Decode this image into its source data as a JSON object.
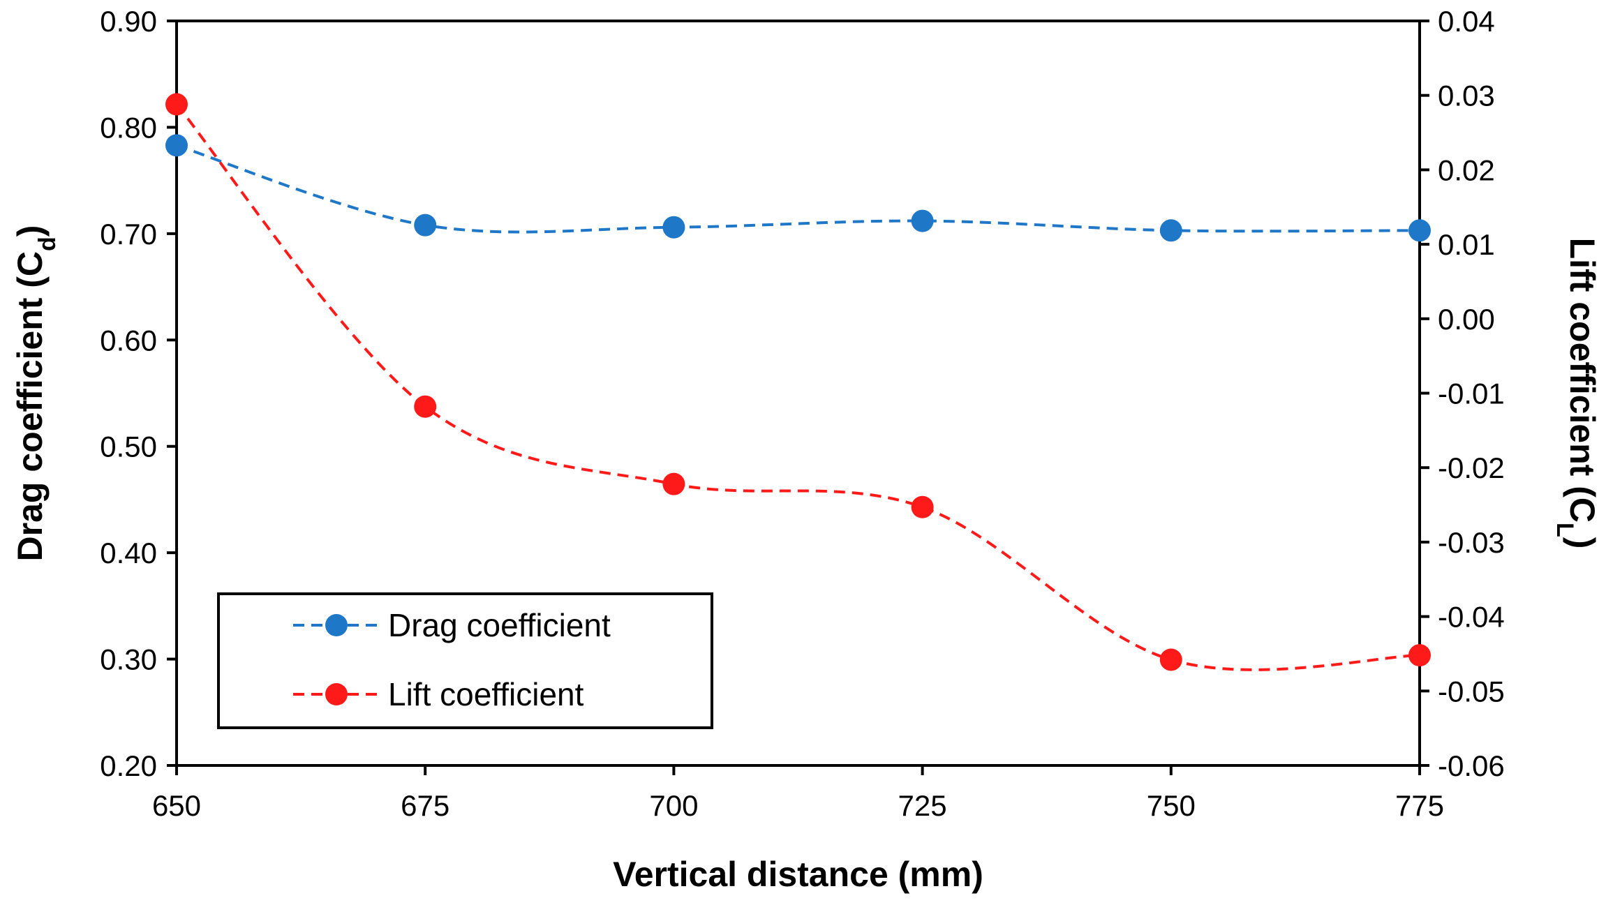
{
  "chart_data": {
    "type": "line",
    "x": [
      650,
      675,
      700,
      725,
      750,
      775
    ],
    "xlabel": "Vertical distance (mm)",
    "xlim": [
      650,
      775
    ],
    "xticks": [
      "650",
      "675",
      "700",
      "725",
      "750",
      "775"
    ],
    "ylabel_left": {
      "main": "Drag coefficient (C",
      "sub": "d",
      "close": ")"
    },
    "ylabel_right": {
      "main": "Lift coefficient (C",
      "sub": "L",
      "close": ")"
    },
    "ylim_left": [
      0.2,
      0.9
    ],
    "ylim_right": [
      -0.06,
      0.04
    ],
    "yticks_left": [
      "0.20",
      "0.30",
      "0.40",
      "0.50",
      "0.60",
      "0.70",
      "0.80",
      "0.90"
    ],
    "yticks_right": [
      "-0.06",
      "-0.05",
      "-0.04",
      "-0.03",
      "-0.02",
      "-0.01",
      "0.00",
      "0.01",
      "0.02",
      "0.03",
      "0.04"
    ],
    "grid": false,
    "legend_position": "bottom-left",
    "series": [
      {
        "name": "Drag coefficient",
        "axis": "left",
        "color": "#1f77c8",
        "values": [
          0.783,
          0.708,
          0.706,
          0.712,
          0.703,
          0.703
        ]
      },
      {
        "name": "Lift coefficient",
        "axis": "right",
        "color": "#ff1a1a",
        "values": [
          0.0288,
          -0.0118,
          -0.0222,
          -0.0253,
          -0.0458,
          -0.0452
        ]
      }
    ]
  }
}
